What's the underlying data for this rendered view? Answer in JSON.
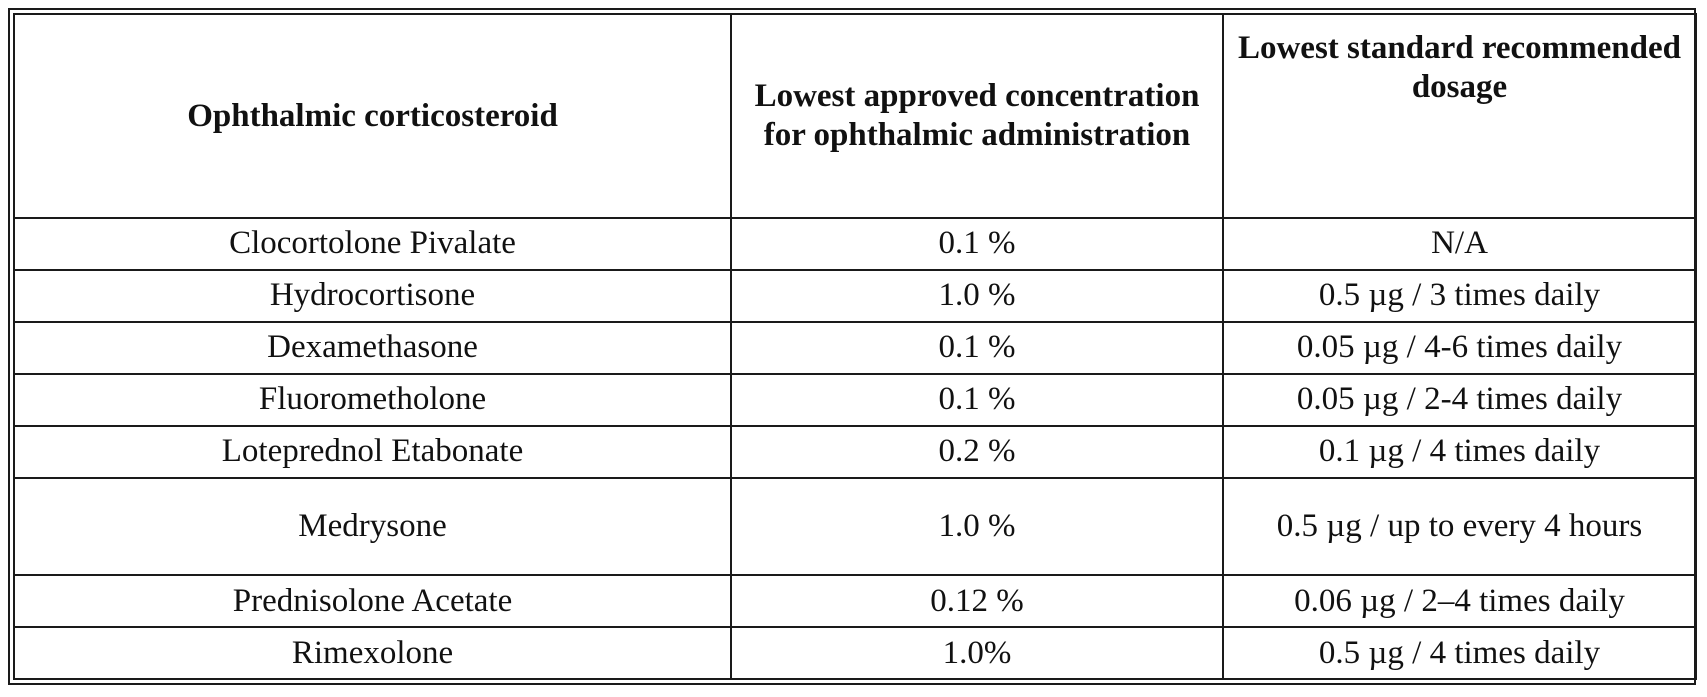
{
  "table": {
    "headers": [
      "Ophthalmic corticosteroid",
      "Lowest approved concentration for ophthalmic administration",
      "Lowest standard recommended dosage"
    ],
    "rows": [
      [
        "Clocortolone Pivalate",
        "0.1 %",
        "N/A"
      ],
      [
        "Hydrocortisone",
        "1.0 %",
        "0.5 µg / 3 times daily"
      ],
      [
        "Dexamethasone",
        "0.1 %",
        "0.05 µg / 4-6 times daily"
      ],
      [
        "Fluorometholone",
        "0.1 %",
        "0.05 µg / 2-4 times daily"
      ],
      [
        "Loteprednol Etabonate",
        "0.2 %",
        "0.1 µg / 4 times daily"
      ],
      [
        "Medrysone",
        "1.0 %",
        "0.5 µg / up to every 4 hours"
      ],
      [
        "Prednisolone Acetate",
        "0.12 %",
        "0.06 µg / 2–4 times daily"
      ],
      [
        "Rimexolone",
        "1.0%",
        "0.5 µg / 4 times daily"
      ]
    ]
  }
}
